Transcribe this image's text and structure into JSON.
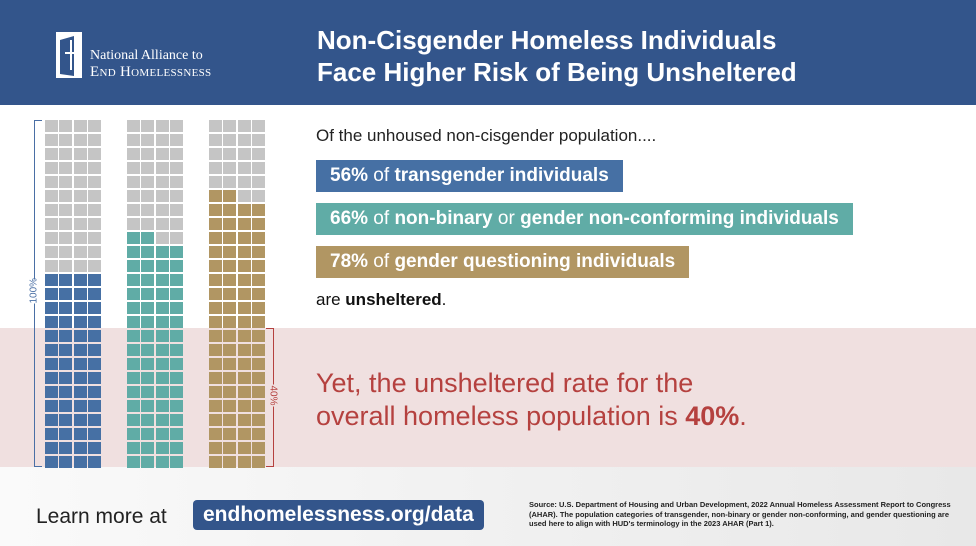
{
  "logo": {
    "line1": "National Alliance to",
    "line2": "End Homelessness"
  },
  "title": {
    "line1": "Non-Cisgender Homeless Individuals",
    "line2": "Face Higher Risk of Being Unsheltered"
  },
  "intro": "Of the unhoused non-cisgender population....",
  "stats": [
    {
      "pct": "56%",
      "of": " of ",
      "label": "transgender individuals",
      "value": 56,
      "color": "#4670a4"
    },
    {
      "pct": "66%",
      "of": " of ",
      "label": "non-binary",
      "or": " or ",
      "label2": "gender non-conforming individuals",
      "value": 66,
      "color": "#60aca6"
    },
    {
      "pct": "78%",
      "of": " of ",
      "label": "gender questioning individuals",
      "value": 78,
      "color": "#b19663"
    }
  ],
  "outro": {
    "pre": "are ",
    "bold": "unsheltered",
    "post": "."
  },
  "bracket_100": "100%",
  "bracket_40": "40%",
  "yet": {
    "line1": "Yet, the unsheltered rate for the",
    "line2": "overall homeless population is ",
    "pct": "40%",
    "post": "."
  },
  "footer": {
    "learn": "Learn more at",
    "url": "endhomelessness.org/data",
    "source": "Source: U.S. Department of Housing and Urban Development, 2022 Annual Homeless Assessment Report to Congress (AHAR). The population categories of transgender, non-binary or gender non-conforming, and gender questioning are used here to align with HUD's terminology in the 2023 AHAR (Part 1)."
  }
}
